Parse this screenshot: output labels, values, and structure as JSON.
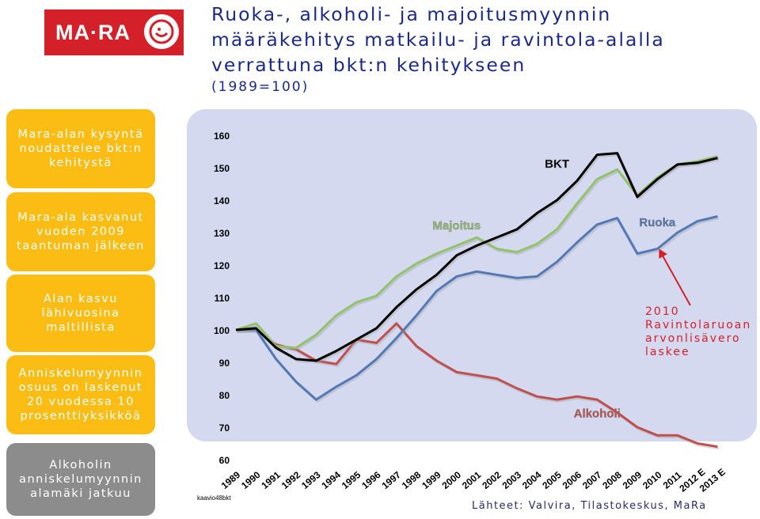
{
  "logo": {
    "text": "MA·RA"
  },
  "title": {
    "line1": "Ruoka-, alkoholi- ja majoitusmyynnin",
    "line2": "määräkehitys matkailu- ja ravintola-alalla",
    "line3": "verrattuna bkt:n kehitykseen",
    "subtitle": "(1989=100)"
  },
  "side_boxes": [
    {
      "text": "Mara-alan kysyntä noudattelee bkt:n kehitystä",
      "color": "yellow"
    },
    {
      "text": "Mara-ala kasvanut vuoden 2009 taantuman jälkeen",
      "color": "yellow"
    },
    {
      "text": "Alan kasvu lähivuosina maltillista",
      "color": "yellow"
    },
    {
      "text": "Anniskelumyynnin osuus on laskenut 20 vuodessa 10 prosenttiyksikköä",
      "color": "yellow"
    },
    {
      "text": "Alkoholin anniskelumyynnin alamäki jatkuu",
      "color": "gray"
    }
  ],
  "annotation": {
    "lines": [
      "2010",
      "Ravintolaruoan",
      "arvonlisävero",
      "laskee"
    ],
    "color": "#d42029"
  },
  "source_note": "Lähteet: Valvira, Tilastokeskus, MaRa",
  "chart_id_label": "kaavio48bkt",
  "chart_data": {
    "type": "line",
    "x": [
      "1989",
      "1990",
      "1991",
      "1992",
      "1993",
      "1994",
      "1995",
      "1996",
      "1997",
      "1998",
      "1999",
      "2000",
      "2001",
      "2002",
      "2003",
      "2004",
      "2005",
      "2006",
      "2007",
      "2008",
      "2009",
      "2010",
      "2011",
      "2012 E",
      "2013 E"
    ],
    "ylim": [
      60,
      160
    ],
    "yticks": [
      60,
      70,
      80,
      90,
      100,
      110,
      120,
      130,
      140,
      150,
      160
    ],
    "grid": false,
    "series": [
      {
        "name": "BKT",
        "color": "#000000",
        "values": [
          100,
          100.5,
          94.5,
          91,
          90.5,
          93.5,
          97,
          100.5,
          107,
          112.5,
          117,
          123,
          126,
          128.5,
          131,
          136,
          140,
          146,
          154,
          154.5,
          141,
          146.5,
          151,
          151.5,
          153
        ]
      },
      {
        "name": "Majoitus",
        "color": "#92c36b",
        "values": [
          100,
          102,
          95,
          94.5,
          98.5,
          104.5,
          108.5,
          110.5,
          116.5,
          120.5,
          123.5,
          126,
          128.5,
          125,
          124,
          126.5,
          131,
          139,
          146.5,
          149.5,
          141.5,
          147,
          151,
          152,
          153.5
        ]
      },
      {
        "name": "Ruoka",
        "color": "#5279b6",
        "values": [
          100,
          100,
          91,
          84,
          78.5,
          82.5,
          86,
          91,
          97.5,
          104.5,
          112,
          116.5,
          118,
          117,
          116,
          116.5,
          121,
          127,
          132.5,
          134.5,
          123.5,
          125,
          130,
          133.5,
          135
        ]
      },
      {
        "name": "Alkoholi",
        "color": "#c0504d",
        "values": [
          100,
          100,
          95.5,
          94,
          90.5,
          89.5,
          97,
          96,
          102,
          95,
          90.5,
          87,
          86,
          85,
          82,
          79.5,
          78.5,
          79.5,
          78.5,
          74.5,
          70,
          67.5,
          67.5,
          65,
          64
        ]
      }
    ],
    "series_labels": [
      {
        "text": "BKT",
        "series": 0,
        "x_index": 16,
        "y": 150,
        "color": "#000000"
      },
      {
        "text": "Majoitus",
        "series": 1,
        "x_index": 11,
        "y": 131,
        "color": "#92c36b"
      },
      {
        "text": "Ruoka",
        "series": 2,
        "x_index": 21,
        "y": 132,
        "color": "#5279b6"
      },
      {
        "text": "Alkoholi",
        "series": 3,
        "x_index": 18,
        "y": 73,
        "color": "#c0504d"
      }
    ]
  }
}
